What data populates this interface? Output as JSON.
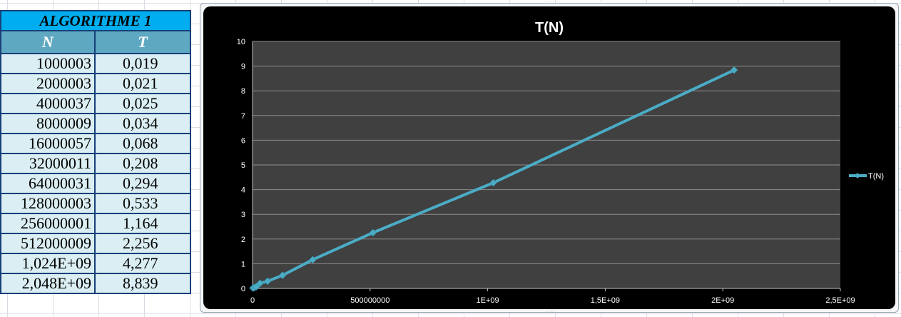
{
  "table": {
    "title": "ALGORITHME 1",
    "headers": [
      "N",
      "T"
    ],
    "rows": [
      [
        "1000003",
        "0,019"
      ],
      [
        "2000003",
        "0,021"
      ],
      [
        "4000037",
        "0,025"
      ],
      [
        "8000009",
        "0,034"
      ],
      [
        "16000057",
        "0,068"
      ],
      [
        "32000011",
        "0,208"
      ],
      [
        "64000031",
        "0,294"
      ],
      [
        "128000003",
        "0,533"
      ],
      [
        "256000001",
        "1,164"
      ],
      [
        "512000009",
        "2,256"
      ],
      [
        "1,024E+09",
        "4,277"
      ],
      [
        "2,048E+09",
        "8,839"
      ]
    ]
  },
  "colors": {
    "title_fill": "#00aeef",
    "header_fill": "#5fa8c2",
    "cell_fill": "#daeef3",
    "border": "#17407a",
    "chart_background": "#000000",
    "plot_background": "#404040",
    "series_line": "#4bacc6"
  },
  "chart_data": {
    "type": "scatter",
    "title": "T(N)",
    "xlabel": "",
    "ylabel": "",
    "xlim": [
      0,
      2500000000
    ],
    "ylim": [
      0,
      10
    ],
    "x_ticks": [
      0,
      500000000,
      1000000000,
      1500000000,
      2000000000,
      2500000000
    ],
    "x_tick_labels": [
      "0",
      "500000000",
      "1E+09",
      "1,5E+09",
      "2E+09",
      "2,5E+09"
    ],
    "y_ticks": [
      0,
      1,
      2,
      3,
      4,
      5,
      6,
      7,
      8,
      9,
      10
    ],
    "y_tick_labels": [
      "0",
      "1",
      "2",
      "3",
      "4",
      "5",
      "6",
      "7",
      "8",
      "9",
      "10"
    ],
    "grid": true,
    "legend_position": "right",
    "series": [
      {
        "name": "T(N)",
        "x": [
          1000003,
          2000003,
          4000037,
          8000009,
          16000057,
          32000011,
          64000031,
          128000003,
          256000001,
          512000009,
          1024000000,
          2048000000
        ],
        "y": [
          0.019,
          0.021,
          0.025,
          0.034,
          0.068,
          0.208,
          0.294,
          0.533,
          1.164,
          2.256,
          4.277,
          8.839
        ]
      }
    ]
  }
}
